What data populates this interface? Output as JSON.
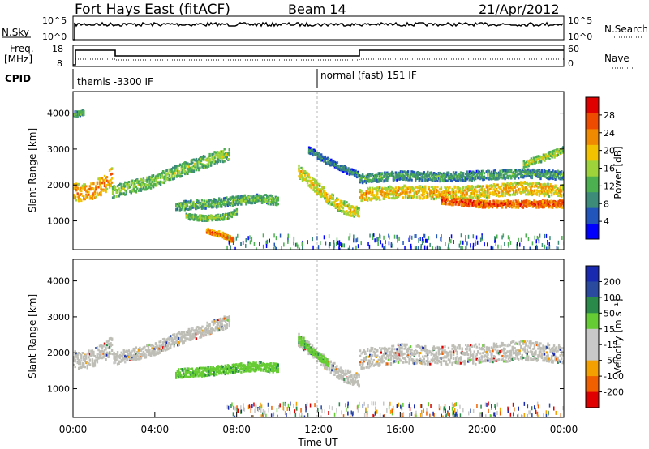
{
  "header": {
    "station": "Fort Hays East (fitACF)",
    "beam": "Beam 14",
    "date": "21/Apr/2012"
  },
  "noise_panel": {
    "left_label": "N.Sky",
    "right_label": "N.Search",
    "left_ticks": [
      "10^5",
      "10^0"
    ],
    "right_ticks": [
      "10^5",
      "10^0"
    ]
  },
  "freq_panel": {
    "left_label_top": "Freq.",
    "left_label_unit": "[MHz]",
    "left_ticks": [
      "18",
      "8"
    ],
    "right_label": "Nave",
    "right_ticks": [
      "60",
      "0"
    ]
  },
  "cpid_panel": {
    "label": "CPID",
    "segments": [
      {
        "name": "themis -3300 IF",
        "start_hour": 0
      },
      {
        "name": "normal (fast) 151 IF",
        "start_hour": 12
      }
    ]
  },
  "colors": {
    "power_scale": [
      "#0000ff",
      "#2255bb",
      "#3d8c7a",
      "#4caf50",
      "#9ed43a",
      "#f2c200",
      "#f08a00",
      "#ee4b00",
      "#e00000"
    ],
    "velocity_scale": [
      "#e00000",
      "#f06000",
      "#f4a000",
      "#c8c8c8",
      "#c8c8c8",
      "#66cc33",
      "#2a8a4a",
      "#2a4aa0",
      "#1a2ab0"
    ],
    "ground_scatter": "#bebeb6"
  },
  "chart_data": [
    {
      "type": "heatmap",
      "panel": "power",
      "xlabel": "",
      "ylabel": "Slant Range [km]",
      "xlim": [
        0,
        24
      ],
      "ylim": [
        200,
        4600
      ],
      "y_ticks": [
        "1000",
        "2000",
        "3000",
        "4000"
      ],
      "colorbar_label": "Power [dB]",
      "colorbar_ticks": [
        "4",
        "8",
        "12",
        "16",
        "20",
        "24",
        "28"
      ],
      "colorbar_range": [
        0,
        32
      ],
      "bands": [
        {
          "x": [
            0.0,
            0.5,
            1.0,
            1.5,
            1.9
          ],
          "y": [
            1850,
            1800,
            1900,
            2050,
            2300
          ],
          "width": 500,
          "level": 24
        },
        {
          "x": [
            1.9,
            3.0,
            4.0,
            5.0,
            6.0,
            7.0,
            7.6
          ],
          "y": [
            1850,
            2000,
            2150,
            2400,
            2600,
            2800,
            2900
          ],
          "width": 350,
          "level": 16
        },
        {
          "x": [
            5.0,
            6.5,
            8.0,
            9.0,
            10.0
          ],
          "y": [
            1450,
            1500,
            1600,
            1650,
            1600
          ],
          "width": 250,
          "level": 14
        },
        {
          "x": [
            5.5,
            6.5,
            7.5,
            8.0
          ],
          "y": [
            1150,
            1100,
            1150,
            1300
          ],
          "width": 150,
          "level": 16
        },
        {
          "x": [
            6.5,
            7.2,
            7.8
          ],
          "y": [
            750,
            650,
            500
          ],
          "width": 150,
          "level": 26
        },
        {
          "x": [
            11.0,
            11.8,
            12.5,
            13.2,
            14.0
          ],
          "y": [
            2400,
            2000,
            1650,
            1400,
            1250
          ],
          "width": 350,
          "level": 20
        },
        {
          "x": [
            11.5,
            12.4,
            13.3,
            14.0
          ],
          "y": [
            3000,
            2700,
            2450,
            2300
          ],
          "width": 180,
          "level": 10
        },
        {
          "x": [
            14.0,
            16.0,
            18.0,
            20.0,
            22.0,
            24.0
          ],
          "y": [
            1750,
            1850,
            1800,
            1850,
            1950,
            1850
          ],
          "width": 350,
          "level": 22
        },
        {
          "x": [
            14.0,
            16.0,
            18.0,
            20.0,
            22.0,
            24.0
          ],
          "y": [
            2200,
            2300,
            2250,
            2300,
            2350,
            2300
          ],
          "width": 250,
          "level": 12
        },
        {
          "x": [
            18.0,
            20.0,
            22.0,
            24.0
          ],
          "y": [
            1600,
            1500,
            1500,
            1500
          ],
          "width": 200,
          "level": 28
        },
        {
          "x": [
            22.0,
            23.0,
            24.0
          ],
          "y": [
            2600,
            2800,
            3000
          ],
          "width": 200,
          "level": 18
        },
        {
          "x": [
            0.0,
            0.5
          ],
          "y": [
            4000,
            4050
          ],
          "width": 150,
          "level": 14
        }
      ]
    },
    {
      "type": "heatmap",
      "panel": "velocity",
      "xlabel": "Time UT",
      "ylabel": "Slant Range [km]",
      "xlim": [
        0,
        24
      ],
      "ylim": [
        200,
        4600
      ],
      "x_ticks": [
        "00:00",
        "04:00",
        "08:00",
        "12:00",
        "16:00",
        "20:00",
        "00:00"
      ],
      "y_ticks": [
        "1000",
        "2000",
        "3000",
        "4000"
      ],
      "colorbar_label": "Velocity [m s⁻¹]",
      "colorbar_ticks": [
        "200",
        "100",
        "50",
        "15",
        "-15",
        "-50",
        "-100",
        "-200"
      ],
      "bands": [
        {
          "x": [
            0.0,
            0.5,
            1.0,
            1.5,
            1.9
          ],
          "y": [
            1850,
            1800,
            1900,
            2050,
            2300
          ],
          "width": 500,
          "class": "gs"
        },
        {
          "x": [
            1.9,
            3.0,
            4.0,
            5.0,
            6.0,
            7.0,
            7.6
          ],
          "y": [
            1850,
            2000,
            2150,
            2400,
            2600,
            2800,
            2900
          ],
          "width": 350,
          "class": "gs"
        },
        {
          "x": [
            5.0,
            6.5,
            8.0,
            9.0,
            10.0
          ],
          "y": [
            1450,
            1500,
            1600,
            1650,
            1600
          ],
          "width": 250,
          "class": "pos"
        },
        {
          "x": [
            11.0,
            11.8,
            12.5,
            13.2,
            14.0
          ],
          "y": [
            2400,
            2000,
            1650,
            1400,
            1250
          ],
          "width": 350,
          "class": "gs"
        },
        {
          "x": [
            11.0,
            11.8,
            12.5
          ],
          "y": [
            2400,
            2000,
            1700
          ],
          "width": 200,
          "class": "pos"
        },
        {
          "x": [
            14.0,
            16.0,
            18.0,
            20.0,
            22.0,
            24.0
          ],
          "y": [
            1850,
            2000,
            1950,
            2000,
            2100,
            2000
          ],
          "width": 550,
          "class": "gs"
        }
      ]
    }
  ]
}
